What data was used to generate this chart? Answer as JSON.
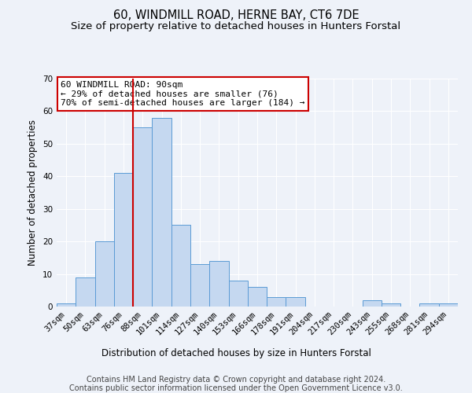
{
  "title": "60, WINDMILL ROAD, HERNE BAY, CT6 7DE",
  "subtitle": "Size of property relative to detached houses in Hunters Forstal",
  "xlabel": "Distribution of detached houses by size in Hunters Forstal",
  "ylabel": "Number of detached properties",
  "bar_labels": [
    "37sqm",
    "50sqm",
    "63sqm",
    "76sqm",
    "88sqm",
    "101sqm",
    "114sqm",
    "127sqm",
    "140sqm",
    "153sqm",
    "166sqm",
    "178sqm",
    "191sqm",
    "204sqm",
    "217sqm",
    "230sqm",
    "243sqm",
    "255sqm",
    "268sqm",
    "281sqm",
    "294sqm"
  ],
  "bar_values": [
    1,
    9,
    20,
    41,
    55,
    58,
    25,
    13,
    14,
    8,
    6,
    3,
    3,
    0,
    0,
    0,
    2,
    1,
    0,
    1,
    1
  ],
  "bar_color": "#c5d8f0",
  "bar_edge_color": "#5b9bd5",
  "ylim": [
    0,
    70
  ],
  "yticks": [
    0,
    10,
    20,
    30,
    40,
    50,
    60,
    70
  ],
  "annotation_box_text": "60 WINDMILL ROAD: 90sqm\n← 29% of detached houses are smaller (76)\n70% of semi-detached houses are larger (184) →",
  "annotation_box_color": "#ffffff",
  "annotation_box_edge_color": "#cc0000",
  "footer_line1": "Contains HM Land Registry data © Crown copyright and database right 2024.",
  "footer_line2": "Contains public sector information licensed under the Open Government Licence v3.0.",
  "background_color": "#eef2f9",
  "plot_background_color": "#eef2f9",
  "grid_color": "#ffffff",
  "title_fontsize": 10.5,
  "subtitle_fontsize": 9.5,
  "axis_label_fontsize": 8.5,
  "tick_fontsize": 7.5,
  "footer_fontsize": 7,
  "annot_fontsize": 8,
  "red_line_x": 3.5
}
